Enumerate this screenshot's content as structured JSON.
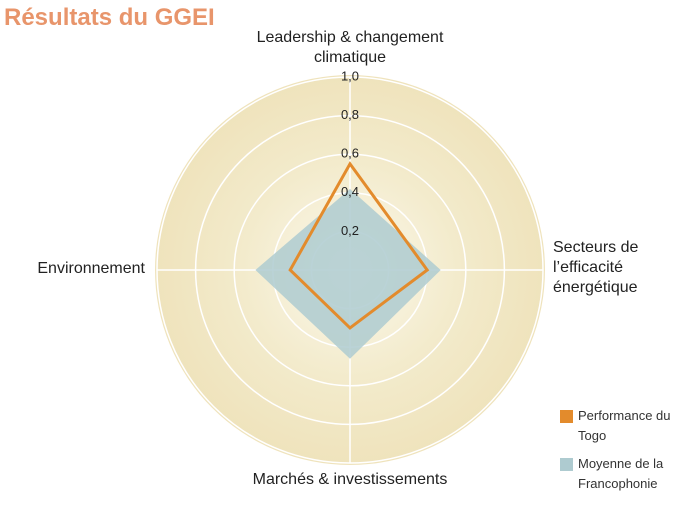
{
  "chart_data": {
    "type": "radar",
    "title": "Résultats du GGEI",
    "categories": [
      "Leadership & changement climatique",
      "Secteurs de l’efficacité énergétique",
      "Marchés & investissements",
      "Environnement"
    ],
    "series": [
      {
        "name": "Moyenne de la Francophonie",
        "color": "#aecbd0",
        "values": [
          0.42,
          0.47,
          0.46,
          0.49
        ]
      },
      {
        "name": "Performance du Togo",
        "color": "#e38b2c",
        "values": [
          0.55,
          0.4,
          0.3,
          0.31
        ]
      }
    ],
    "ylim": [
      0,
      1
    ],
    "yticks": [
      {
        "value": 0.2,
        "label": "0,2"
      },
      {
        "value": 0.4,
        "label": "0,4"
      },
      {
        "value": 0.6,
        "label": "0,6"
      },
      {
        "value": 0.8,
        "label": "0,8"
      },
      {
        "value": 1.0,
        "label": "1,0"
      }
    ],
    "grid": true
  }
}
